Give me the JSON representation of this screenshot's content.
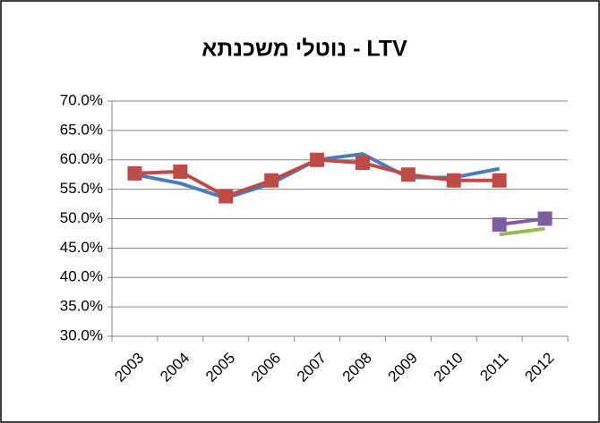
{
  "chart_data": {
    "type": "line",
    "title": "LTV - נוטלי משכנתא",
    "categories": [
      "2003",
      "2004",
      "2005",
      "2006",
      "2007",
      "2008",
      "2009",
      "2010",
      "2011",
      "2012"
    ],
    "series": [
      {
        "color": "#4a7ebb",
        "marker": "none",
        "values": [
          57.5,
          56,
          53.5,
          56,
          60,
          61,
          57,
          57,
          58.5,
          null
        ]
      },
      {
        "color": "#be4b48",
        "marker": "square",
        "values": [
          57.7,
          58,
          53.8,
          56.5,
          60,
          59.5,
          57.5,
          56.5,
          56.5,
          null
        ]
      },
      {
        "color": "#7d5fa0",
        "marker": "square",
        "values": [
          null,
          null,
          null,
          null,
          null,
          null,
          null,
          null,
          49,
          50
        ]
      },
      {
        "color": "#98b954",
        "marker": "none",
        "values": [
          null,
          null,
          null,
          null,
          null,
          null,
          null,
          null,
          47.3,
          48.3
        ]
      }
    ],
    "ylim": [
      30,
      70
    ],
    "yticks": [
      {
        "value": 30,
        "label": "30.0%"
      },
      {
        "value": 35,
        "label": "35.0%"
      },
      {
        "value": 40,
        "label": "40.0%"
      },
      {
        "value": 45,
        "label": "45.0%"
      },
      {
        "value": 50,
        "label": "50.0%"
      },
      {
        "value": 55,
        "label": "55.0%"
      },
      {
        "value": 60,
        "label": "60.0%"
      },
      {
        "value": 65,
        "label": "65.0%"
      },
      {
        "value": 70,
        "label": "70.0%"
      }
    ],
    "grid": true
  }
}
